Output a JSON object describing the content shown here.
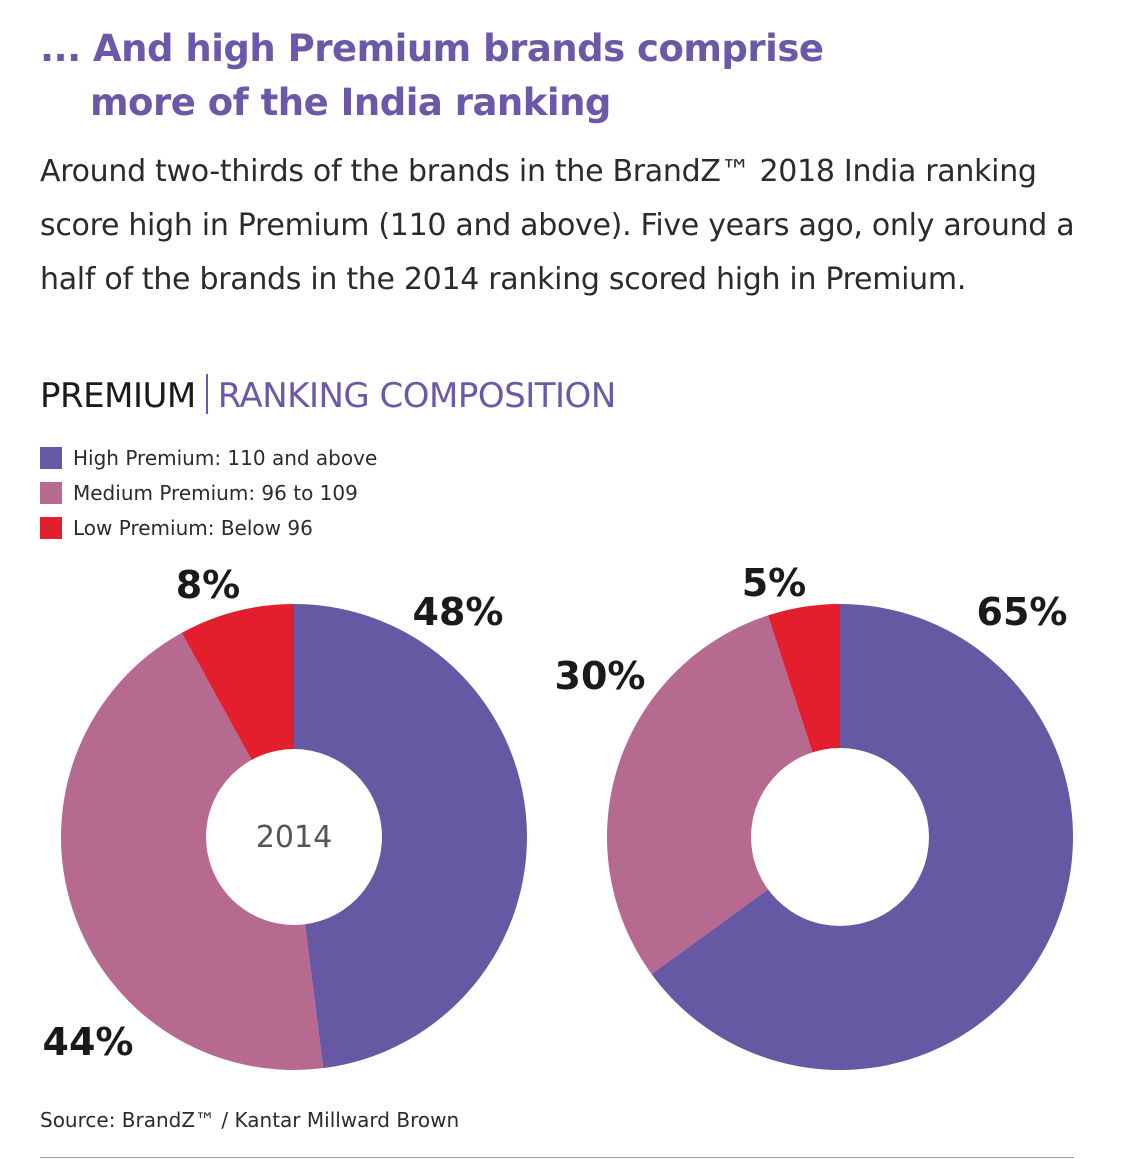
{
  "title": {
    "line1": "... And high Premium brands comprise",
    "line2": "more of the India ranking"
  },
  "description": "Around two-thirds of the brands in the BrandZ™ 2018 India ranking score high in Premium (110 and above). Five years ago, only around a half of the brands in the 2014 ranking scored high in Premium.",
  "section": {
    "left": "PREMIUM",
    "right": "RANKING COMPOSITION"
  },
  "legend": [
    {
      "label": "High Premium: 110 and above",
      "color": "#6658a3"
    },
    {
      "label": "Medium Premium: 96 to 109",
      "color": "#b76a90"
    },
    {
      "label": "Low Premium: Below 96",
      "color": "#e31e2d"
    }
  ],
  "chart_data": [
    {
      "type": "pie",
      "center_label": "2014",
      "categories": [
        "High Premium",
        "Medium Premium",
        "Low Premium"
      ],
      "values": [
        48,
        44,
        8
      ],
      "labels": [
        "48%",
        "44%",
        "8%"
      ],
      "colors": [
        "#6658a3",
        "#b76a90",
        "#e31e2d"
      ]
    },
    {
      "type": "pie",
      "center_label": "",
      "categories": [
        "High Premium",
        "Medium Premium",
        "Low Premium"
      ],
      "values": [
        65,
        30,
        5
      ],
      "labels": [
        "65%",
        "30%",
        "5%"
      ],
      "colors": [
        "#6658a3",
        "#b76a90",
        "#e31e2d"
      ]
    }
  ],
  "source": "Source: BrandZ™ / Kantar Millward Brown"
}
